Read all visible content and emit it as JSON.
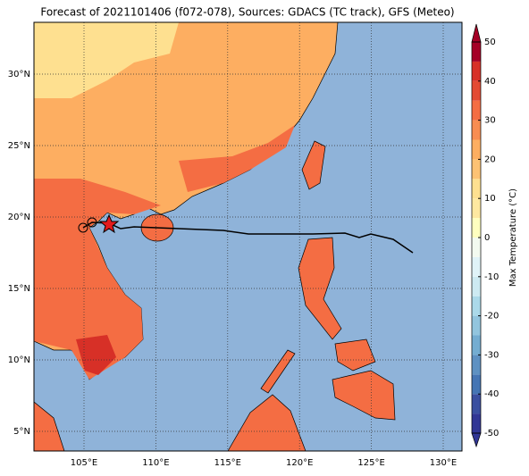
{
  "title": "Forecast of 2021101406 (f072-078), Sources: GDACS (TC track), GFS (Meteo)",
  "map": {
    "lon_ticks": [
      {
        "value": 105,
        "label": "105°E"
      },
      {
        "value": 110,
        "label": "110°E"
      },
      {
        "value": 115,
        "label": "115°E"
      },
      {
        "value": 120,
        "label": "120°E"
      },
      {
        "value": 125,
        "label": "125°E"
      },
      {
        "value": 130,
        "label": "130°E"
      }
    ],
    "lat_ticks": [
      {
        "value": 5,
        "label": "5°N"
      },
      {
        "value": 10,
        "label": "10°N"
      },
      {
        "value": 15,
        "label": "15°N"
      },
      {
        "value": 20,
        "label": "20°N"
      },
      {
        "value": 25,
        "label": "25°N"
      },
      {
        "value": 30,
        "label": "30°N"
      }
    ]
  },
  "colorbar": {
    "label": "Max Temperature (°C)",
    "ticks": [
      -50,
      -40,
      -30,
      -20,
      -10,
      0,
      10,
      20,
      30,
      40,
      50
    ],
    "colors": [
      "#313695",
      "#3a4fa0",
      "#4575b4",
      "#5e91c2",
      "#74add1",
      "#92c5de",
      "#abd9e9",
      "#cdeaf2",
      "#e0f3f8",
      "#f3faf0",
      "#ffffbf",
      "#fee8a0",
      "#fee090",
      "#fdc274",
      "#fdae61",
      "#f88d52",
      "#f46d43",
      "#e34a33",
      "#d73027",
      "#a50026"
    ]
  }
}
